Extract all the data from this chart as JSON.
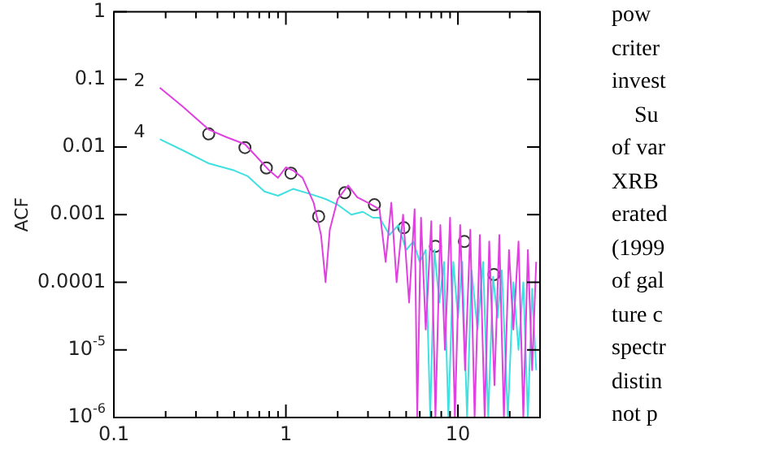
{
  "chart_data": {
    "type": "line",
    "ylabel": "ACF",
    "log": "xy",
    "grid": false,
    "legend": false,
    "xlim": [
      0.1,
      30
    ],
    "ylim": [
      1e-06,
      1
    ],
    "xticks": [
      0.1,
      {
        "value": 0.2,
        "label": null
      },
      {
        "value": 0.3,
        "label": null
      },
      {
        "value": 0.4,
        "label": null
      },
      {
        "value": 0.5,
        "label": null
      },
      {
        "value": 0.6,
        "label": null
      },
      {
        "value": 0.7,
        "label": null
      },
      {
        "value": 0.8,
        "label": null
      },
      {
        "value": 0.9,
        "label": null
      },
      1,
      {
        "value": 2,
        "label": null
      },
      {
        "value": 3,
        "label": null
      },
      {
        "value": 4,
        "label": null
      },
      {
        "value": 5,
        "label": null
      },
      {
        "value": 6,
        "label": null
      },
      {
        "value": 7,
        "label": null
      },
      {
        "value": 8,
        "label": null
      },
      {
        "value": 9,
        "label": null
      },
      10,
      {
        "value": 20,
        "label": null
      }
    ],
    "yticks": [
      {
        "value": 1e-06,
        "label": "10$^{-6}$"
      },
      {
        "value": 1e-05,
        "label": "10$^{-5}$"
      },
      0.0001,
      0.001,
      0.01,
      0.1,
      1
    ],
    "annotations": [
      "pow",
      "criter",
      "invest",
      "Su",
      "of var",
      "XRB",
      "erated",
      "(1999",
      "of gal",
      "ture c",
      "spectr",
      "distin",
      "not p"
    ],
    "series": [
      {
        "name": "2",
        "color": "#e040e0",
        "marker": "none",
        "x": [
          0.185,
          0.25,
          0.357,
          0.45,
          0.578,
          0.7,
          0.8,
          0.9,
          1.0,
          1.1,
          1.25,
          1.45,
          1.6,
          1.7,
          1.8,
          2.0,
          2.3,
          2.6,
          3.0,
          3.5,
          3.8,
          4.1,
          4.4,
          4.8,
          5.2,
          5.6,
          5.8,
          6.1,
          6.5,
          7,
          7.4,
          7.9,
          8.4,
          9,
          9.6,
          10.3,
          11,
          11.8,
          12.5,
          13.4,
          14.3,
          15.2,
          16.3,
          17.4,
          18.5,
          19.8,
          21,
          22.5,
          24,
          25.5,
          27,
          28.5
        ],
        "values": [
          0.075,
          0.04,
          0.018,
          0.014,
          0.011,
          0.0065,
          0.0045,
          0.0035,
          0.005,
          0.0045,
          0.0035,
          0.0015,
          0.0005,
          0.0001,
          0.0006,
          0.0017,
          0.0027,
          0.0018,
          0.0015,
          0.0012,
          0.0002,
          0.0015,
          0.0001,
          0.001,
          5e-05,
          0.0012,
          1e-06,
          0.0009,
          2e-05,
          0.0008,
          1e-06,
          0.0007,
          1e-05,
          0.0009,
          1e-06,
          0.0007,
          5e-06,
          0.0006,
          1e-06,
          0.0005,
          1e-06,
          0.0004,
          3e-06,
          0.0005,
          1e-06,
          0.0003,
          2e-05,
          0.0004,
          1e-06,
          0.0003,
          5e-06,
          0.0002
        ]
      },
      {
        "name": "4",
        "color": "#40e0e0",
        "marker": "none",
        "x": [
          0.185,
          0.25,
          0.357,
          0.5,
          0.6,
          0.75,
          0.9,
          1.1,
          1.4,
          1.7,
          2.0,
          2.4,
          2.8,
          3.2,
          3.5,
          4,
          4.5,
          5,
          5.5,
          6,
          6.5,
          6.9,
          7.3,
          7.8,
          8.3,
          8.8,
          9.4,
          10,
          10.6,
          11.3,
          12,
          13,
          14,
          15,
          16,
          17,
          18,
          19.5,
          21,
          22.5,
          24,
          25.5,
          27,
          28.5
        ],
        "values": [
          0.013,
          0.009,
          0.0057,
          0.0045,
          0.0037,
          0.0022,
          0.0019,
          0.0024,
          0.002,
          0.0017,
          0.0014,
          0.001,
          0.0011,
          0.0009,
          0.0009,
          0.0005,
          0.0007,
          0.0003,
          0.0004,
          0.0002,
          0.0003,
          1e-06,
          0.0003,
          5e-05,
          0.0002,
          1e-06,
          0.0002,
          3e-05,
          0.0002,
          1e-06,
          0.00015,
          2e-05,
          0.0002,
          1e-06,
          0.00012,
          3e-05,
          0.00015,
          1e-06,
          0.0001,
          1e-05,
          0.0001,
          1e-06,
          8e-05,
          5e-06
        ]
      },
      {
        "type": "scatter",
        "color": "#333333",
        "marker": "circle",
        "x": [
          0.356,
          0.578,
          0.77,
          1.07,
          1.55,
          2.2,
          3.27,
          4.85,
          7.4,
          10.9,
          16.2
        ],
        "values": [
          0.0156,
          0.0098,
          0.0049,
          0.0041,
          0.00094,
          0.0021,
          0.0014,
          0.00064,
          0.00034,
          0.0004,
          0.00013
        ]
      }
    ]
  }
}
